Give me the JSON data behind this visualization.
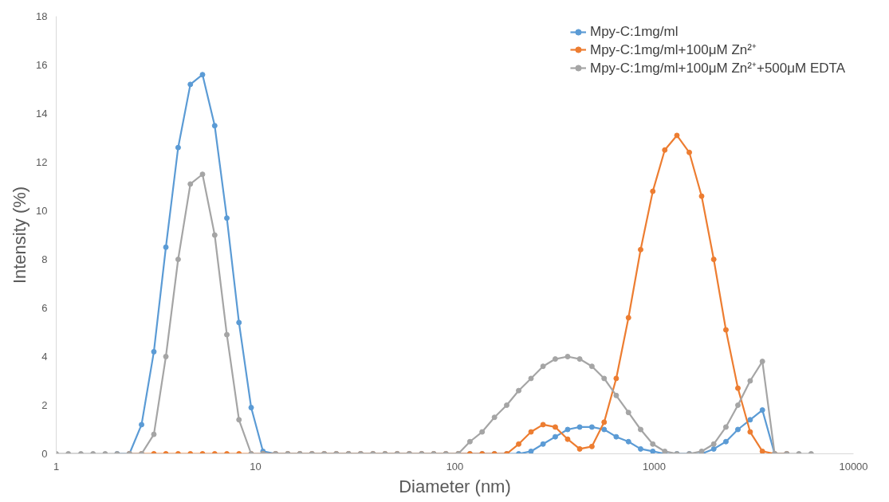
{
  "chart_data": {
    "type": "line",
    "xlabel": "Diameter (nm)",
    "ylabel": "Intensity (%)",
    "log": "x",
    "xlim": [
      1,
      10000
    ],
    "xticks": [
      1,
      10,
      100,
      1000,
      10000
    ],
    "ylim": [
      0,
      18
    ],
    "yticks": [
      0,
      2,
      4,
      6,
      8,
      10,
      12,
      14,
      16,
      18
    ],
    "grid": false,
    "legend": "top right",
    "marker": "circle",
    "line_style": "solid",
    "x": [
      1.0,
      1.15,
      1.33,
      1.53,
      1.76,
      2.02,
      2.33,
      2.68,
      3.09,
      3.55,
      4.09,
      4.71,
      5.42,
      6.24,
      7.18,
      8.26,
      9.51,
      10.9,
      12.6,
      14.5,
      16.7,
      19.2,
      22.1,
      25.4,
      29.3,
      33.7,
      38.8,
      44.6,
      51.4,
      59.1,
      68.1,
      78.3,
      90.2,
      104,
      119,
      137,
      158,
      182,
      209,
      241,
      277,
      319,
      368,
      423,
      487,
      561,
      645,
      743,
      855,
      984,
      1130,
      1300,
      1500,
      1730,
      1990,
      2290,
      2630,
      3030,
      3490,
      4020,
      4620,
      5320,
      6130
    ],
    "series": [
      {
        "name": "Mpy-C:1mg/ml",
        "color": "#5b9bd5",
        "values": [
          null,
          null,
          null,
          null,
          null,
          0,
          0,
          1.2,
          4.2,
          8.5,
          12.6,
          15.2,
          15.6,
          13.5,
          9.7,
          5.4,
          1.9,
          0.1,
          0,
          0,
          0,
          0,
          0,
          0,
          0,
          0,
          0,
          0,
          0,
          0,
          0,
          0,
          0,
          0,
          0,
          0,
          0,
          0,
          0,
          0.1,
          0.4,
          0.7,
          1.0,
          1.1,
          1.1,
          1.0,
          0.7,
          0.5,
          0.2,
          0.1,
          0,
          0,
          0,
          0,
          0.2,
          0.5,
          1.0,
          1.4,
          1.8,
          0,
          0,
          null,
          null
        ]
      },
      {
        "name": "Mpy-C:1mg/ml+100μM Zn²⁺",
        "color": "#ed7d31",
        "values": [
          null,
          null,
          null,
          null,
          null,
          null,
          0,
          0,
          0,
          0,
          0,
          0,
          0,
          0,
          0,
          0,
          0,
          0,
          0,
          0,
          0,
          0,
          0,
          0,
          0,
          0,
          0,
          0,
          0,
          0,
          0,
          0,
          0,
          0,
          0,
          0,
          0,
          0,
          0.4,
          0.9,
          1.2,
          1.1,
          0.6,
          0.2,
          0.3,
          1.3,
          3.1,
          5.6,
          8.4,
          10.8,
          12.5,
          13.1,
          12.4,
          10.6,
          8.0,
          5.1,
          2.7,
          0.9,
          0.1,
          0,
          0,
          null,
          null
        ]
      },
      {
        "name": "Mpy-C:1mg/ml+100μM Zn²⁺+500μM EDTA",
        "color": "#a5a5a5",
        "values": [
          0,
          0,
          0,
          0,
          0,
          0,
          0,
          0,
          0.8,
          4.0,
          8.0,
          11.1,
          11.5,
          9.0,
          4.9,
          1.4,
          0,
          0,
          0,
          0,
          0,
          0,
          0,
          0,
          0,
          0,
          0,
          0,
          0,
          0,
          0,
          0,
          0,
          0,
          0.5,
          0.9,
          1.5,
          2.0,
          2.6,
          3.1,
          3.6,
          3.9,
          4.0,
          3.9,
          3.6,
          3.1,
          2.4,
          1.7,
          1.0,
          0.4,
          0.1,
          0,
          0,
          0.1,
          0.4,
          1.1,
          2.0,
          3.0,
          3.8,
          0,
          0,
          0,
          0
        ]
      }
    ]
  }
}
